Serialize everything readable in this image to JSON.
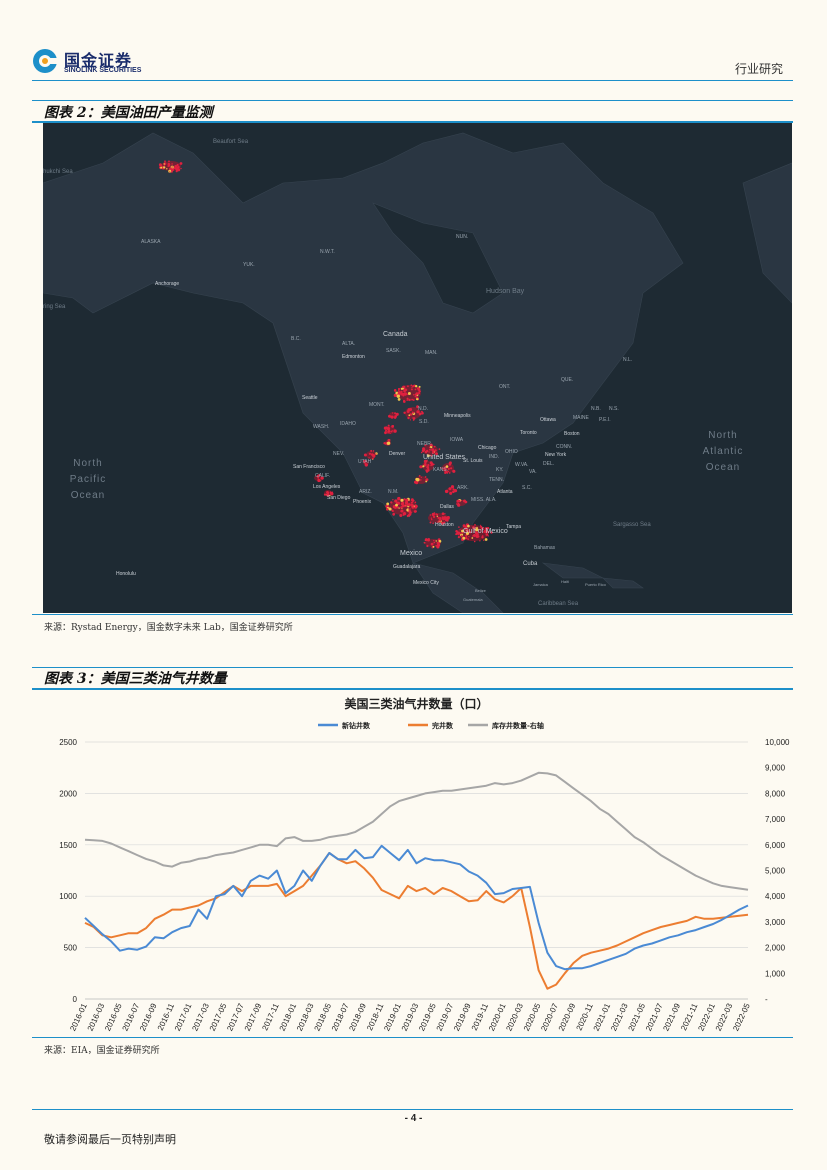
{
  "header": {
    "logo_cn": "国金证券",
    "logo_en": "SINOLINK SECURITIES",
    "section": "行业研究"
  },
  "figure2": {
    "caption": "图表 2：美国油田产量监测",
    "source": "来源：Rystad Energy，国金数字未来 Lab，国金证券研究所",
    "map_labels": {
      "beaufort": "Beaufort Sea",
      "chukchi": "hukchi Sea",
      "alaska": "ALASKA",
      "yuk": "YUK.",
      "nwt": "N.W.T.",
      "nun": "NUN.",
      "hudson": "Hudson Bay",
      "anchorage": "Anchorage",
      "bering": "ring Sea",
      "bc": "B.C.",
      "alta": "ALTA.",
      "canada": "Canada",
      "sask": "SASK.",
      "man": "MAN.",
      "edmonton": "Edmonton",
      "nl": "N.L.",
      "que": "QUE.",
      "ont": "ONT.",
      "seattle": "Seattle",
      "mont": "MONT.",
      "nd": "N.D.",
      "minneapolis": "Minneapolis",
      "wash": "WASH.",
      "idaho": "IDAHO",
      "sd": "S.D.",
      "ottawa": "Ottawa",
      "toronto": "Toronto",
      "boston": "Boston",
      "nb": "N.B.",
      "ns": "N.S.",
      "maine": "MAINE",
      "pei": "P.E.I.",
      "north_pacific": "North Pacific Ocean",
      "north_atlantic": "North Atlantic Ocean",
      "nev": "NEV.",
      "utah": "UTAH",
      "neb": "NEBR.",
      "iowa": "IOWA",
      "chicago": "Chicago",
      "denver": "Denver",
      "united_states": "United States",
      "st_louis": "St. Louis",
      "ind": "IND.",
      "ohio": "OHIO",
      "new_york": "New York",
      "san_francisco": "San Francisco",
      "calif": "CALIF.",
      "kans": "KANS.",
      "wva": "W.VA.",
      "va": "VA.",
      "del": "DEL.",
      "conn": "CONN.",
      "ky": "KY.",
      "tenn": "TENN.",
      "los_angeles": "Los Angeles",
      "san_diego": "San Diego",
      "ariz": "ARIZ.",
      "nm": "N.M.",
      "ark": "ARK.",
      "atlanta": "Atlanta",
      "sc": "S.C.",
      "miss": "MISS. ALA.",
      "phoenix": "Phoenix",
      "dallas": "Dallas",
      "houston": "Houston",
      "gulf": "Gulf of Mexico",
      "tampa": "Tampa",
      "sargasso": "Sargasso Sea",
      "bahamas": "Bahamas",
      "mexico": "Mexico",
      "cuba": "Cuba",
      "guadalajara": "Guadalajara",
      "mexico_city": "Mexico City",
      "honolulu": "Honolulu",
      "jamaica": "Jamaica",
      "haiti": "Haiti",
      "puerto_rico": "Puerto Rico",
      "belize": "Belize",
      "guatemala": "Guatemala",
      "caribbean": "Caribbean Sea"
    }
  },
  "figure3": {
    "caption": "图表 3：美国三类油气井数量",
    "source": "来源：EIA，国金证券研究所"
  },
  "chart_data": {
    "type": "line",
    "title": "美国三类油气井数量（口）",
    "x": [
      "2016-01",
      "2016-02",
      "2016-03",
      "2016-04",
      "2016-05",
      "2016-06",
      "2016-07",
      "2016-08",
      "2016-09",
      "2016-10",
      "2016-11",
      "2016-12",
      "2017-01",
      "2017-02",
      "2017-03",
      "2017-04",
      "2017-05",
      "2017-06",
      "2017-07",
      "2017-08",
      "2017-09",
      "2017-10",
      "2017-11",
      "2017-12",
      "2018-01",
      "2018-02",
      "2018-03",
      "2018-04",
      "2018-05",
      "2018-06",
      "2018-07",
      "2018-08",
      "2018-09",
      "2018-10",
      "2018-11",
      "2018-12",
      "2019-01",
      "2019-02",
      "2019-03",
      "2019-04",
      "2019-05",
      "2019-06",
      "2019-07",
      "2019-08",
      "2019-09",
      "2019-10",
      "2019-11",
      "2019-12",
      "2020-01",
      "2020-02",
      "2020-03",
      "2020-04",
      "2020-05",
      "2020-06",
      "2020-07",
      "2020-08",
      "2020-09",
      "2020-10",
      "2020-11",
      "2020-12",
      "2021-01",
      "2021-02",
      "2021-03",
      "2021-04",
      "2021-05",
      "2021-06",
      "2021-07",
      "2021-08",
      "2021-09",
      "2021-10",
      "2021-11",
      "2021-12",
      "2022-01",
      "2022-02",
      "2022-03",
      "2022-04",
      "2022-05"
    ],
    "x_tick_labels": [
      "2016-01",
      "2016-03",
      "2016-05",
      "2016-07",
      "2016-09",
      "2016-11",
      "2017-01",
      "2017-03",
      "2017-05",
      "2017-07",
      "2017-09",
      "2017-11",
      "2018-01",
      "2018-03",
      "2018-05",
      "2018-07",
      "2018-09",
      "2018-11",
      "2019-01",
      "2019-03",
      "2019-05",
      "2019-07",
      "2019-09",
      "2019-11",
      "2020-01",
      "2020-03",
      "2020-05",
      "2020-07",
      "2020-09",
      "2020-11",
      "2021-01",
      "2021-03",
      "2021-05",
      "2021-07",
      "2021-09",
      "2021-11",
      "2022-01",
      "2022-03",
      "2022-05"
    ],
    "series": [
      {
        "name": "新钻井数",
        "axis": "left",
        "color": "#4a8ad4",
        "values": [
          790,
          710,
          630,
          560,
          470,
          490,
          480,
          510,
          600,
          590,
          650,
          690,
          710,
          870,
          780,
          1000,
          1020,
          1100,
          1000,
          1150,
          1200,
          1170,
          1250,
          1030,
          1100,
          1250,
          1150,
          1300,
          1420,
          1360,
          1360,
          1450,
          1370,
          1380,
          1490,
          1420,
          1350,
          1450,
          1320,
          1370,
          1350,
          1350,
          1330,
          1310,
          1240,
          1200,
          1130,
          1020,
          1030,
          1070,
          1080,
          1090,
          740,
          450,
          320,
          290,
          300,
          300,
          320,
          350,
          380,
          410,
          440,
          490,
          520,
          540,
          570,
          600,
          620,
          650,
          670,
          700,
          730,
          770,
          820,
          870,
          910
        ]
      },
      {
        "name": "完井数",
        "axis": "left",
        "color": "#ec7d31",
        "values": [
          740,
          700,
          620,
          600,
          620,
          640,
          640,
          690,
          780,
          820,
          870,
          870,
          890,
          910,
          950,
          980,
          1040,
          1100,
          1050,
          1100,
          1100,
          1100,
          1120,
          1000,
          1050,
          1100,
          1200,
          1300,
          1420,
          1360,
          1320,
          1340,
          1270,
          1180,
          1060,
          1020,
          980,
          1100,
          1050,
          1080,
          1020,
          1080,
          1050,
          1000,
          950,
          960,
          1050,
          970,
          940,
          1000,
          1080,
          700,
          280,
          100,
          140,
          250,
          350,
          420,
          450,
          470,
          490,
          520,
          560,
          600,
          640,
          670,
          700,
          720,
          740,
          760,
          800,
          780,
          780,
          790,
          800,
          810,
          820
        ]
      },
      {
        "name": "库存井数量-右轴",
        "axis": "right",
        "color": "#a6a6a6",
        "values": [
          6200,
          6180,
          6150,
          6050,
          5900,
          5750,
          5600,
          5450,
          5350,
          5200,
          5150,
          5300,
          5350,
          5450,
          5500,
          5600,
          5650,
          5700,
          5800,
          5900,
          6000,
          6000,
          5950,
          6250,
          6300,
          6150,
          6150,
          6200,
          6300,
          6350,
          6400,
          6500,
          6700,
          6900,
          7200,
          7500,
          7700,
          7800,
          7900,
          8000,
          8050,
          8100,
          8100,
          8150,
          8200,
          8250,
          8300,
          8400,
          8350,
          8400,
          8500,
          8650,
          8800,
          8780,
          8700,
          8450,
          8200,
          7950,
          7700,
          7400,
          7200,
          6900,
          6600,
          6300,
          6100,
          5850,
          5600,
          5400,
          5200,
          5000,
          4800,
          4650,
          4500,
          4400,
          4350,
          4300,
          4250
        ]
      }
    ],
    "y_left": {
      "lim": [
        0,
        2500
      ],
      "ticks": [
        "0",
        "500",
        "1000",
        "1500",
        "2000",
        "2500"
      ]
    },
    "y_right": {
      "lim": [
        0,
        10000
      ],
      "ticks": [
        "-",
        "1,000",
        "2,000",
        "3,000",
        "4,000",
        "5,000",
        "6,000",
        "7,000",
        "8,000",
        "9,000",
        "10,000"
      ]
    },
    "grid": true,
    "legend_position": "top"
  },
  "footer": {
    "page": "- 4 -",
    "note": "敬请参阅最后一页特别声明"
  }
}
